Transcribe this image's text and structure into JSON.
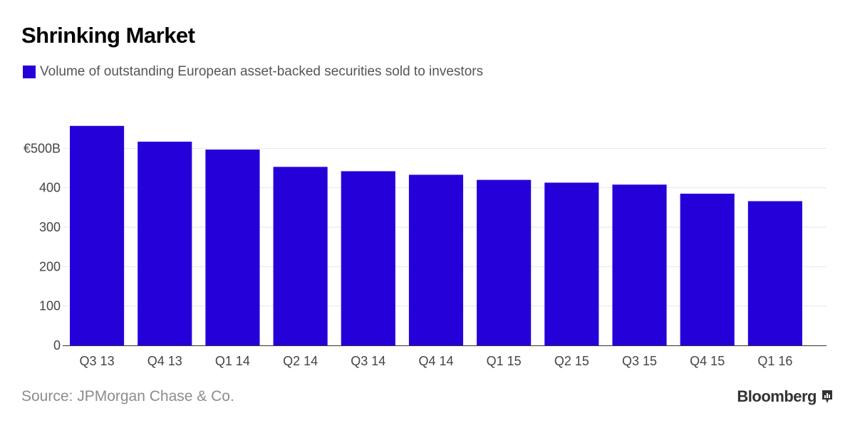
{
  "chart_data": {
    "type": "bar",
    "title": "Shrinking Market",
    "legend": "Volume of outstanding European asset-backed securities sold to investors",
    "categories": [
      "Q3 13",
      "Q4 13",
      "Q1 14",
      "Q2 14",
      "Q3 14",
      "Q4 14",
      "Q1 15",
      "Q2 15",
      "Q3 15",
      "Q4 15",
      "Q1 16"
    ],
    "values": [
      557,
      517,
      497,
      453,
      442,
      433,
      420,
      413,
      408,
      385,
      366
    ],
    "yticks": [
      0,
      100,
      200,
      300,
      400,
      500
    ],
    "ytick_labels": [
      "0",
      "100",
      "200",
      "300",
      "400",
      "€500B"
    ],
    "ylim": [
      0,
      600
    ],
    "xlabel": "",
    "ylabel": "",
    "grid": true
  },
  "colors": {
    "bar": "#2600d9",
    "grid": "#e6e6e6",
    "axis": "#333333"
  },
  "footer": {
    "source": "Source: JPMorgan Chase & Co.",
    "brand": "Bloomberg"
  }
}
